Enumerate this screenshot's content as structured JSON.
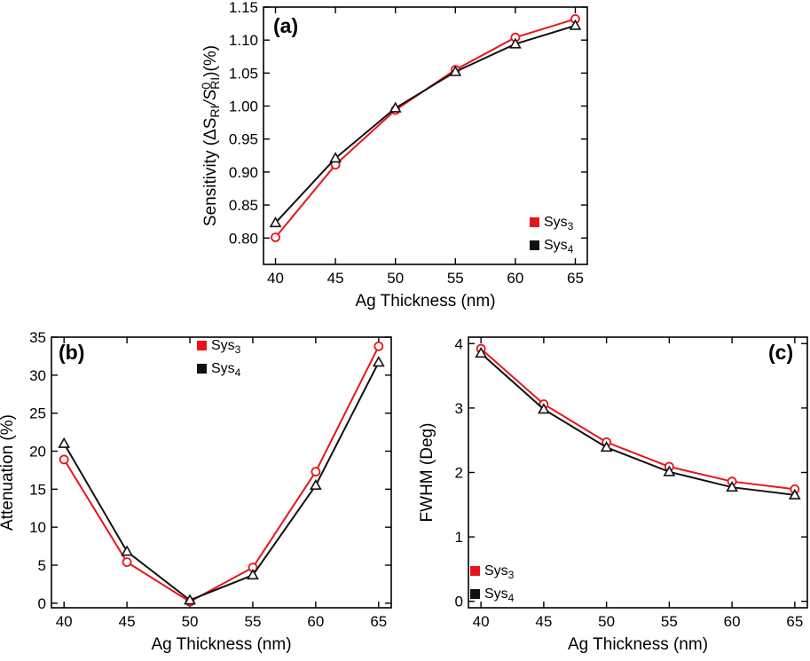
{
  "chart_data": [
    {
      "type": "line",
      "panel_label": "(a)",
      "xlabel": "Ag Thickness (nm)",
      "ylabel_parts": {
        "pre": "Sensitivity (ΔS",
        "sub1": "RI",
        "mid": "/S",
        "sup2": "0",
        "sub2": "RI",
        "post": ")(%)"
      },
      "x": [
        40,
        45,
        50,
        55,
        60,
        65
      ],
      "xlim": [
        39,
        66
      ],
      "ylim": [
        0.76,
        1.15
      ],
      "xticks": [
        "40",
        "45",
        "50",
        "55",
        "60",
        "65"
      ],
      "yticks": [
        "0.80",
        "0.85",
        "0.90",
        "0.95",
        "1.00",
        "1.05",
        "1.10",
        "1.15"
      ],
      "series": [
        {
          "name": "Sys",
          "sub": "3",
          "color": "#e8141b",
          "marker": "circle",
          "values": [
            0.801,
            0.911,
            0.994,
            1.055,
            1.104,
            1.132
          ]
        },
        {
          "name": "Sys",
          "sub": "4",
          "color": "#111111",
          "marker": "triangle",
          "values": [
            0.823,
            0.921,
            0.997,
            1.052,
            1.094,
            1.122
          ]
        }
      ],
      "legend_position": "bottom-right"
    },
    {
      "type": "line",
      "panel_label": "(b)",
      "xlabel": "Ag Thickness (nm)",
      "ylabel": "Attenuation (%)",
      "x": [
        40,
        45,
        50,
        55,
        60,
        65
      ],
      "xlim": [
        39,
        66
      ],
      "ylim": [
        -0.6,
        35
      ],
      "xticks": [
        "40",
        "45",
        "50",
        "55",
        "60",
        "65"
      ],
      "yticks": [
        "0",
        "5",
        "10",
        "15",
        "20",
        "25",
        "30",
        "35"
      ],
      "series": [
        {
          "name": "Sys",
          "sub": "3",
          "color": "#e8141b",
          "marker": "circle",
          "values": [
            18.9,
            5.4,
            0.2,
            4.7,
            17.3,
            33.8
          ]
        },
        {
          "name": "Sys",
          "sub": "4",
          "color": "#111111",
          "marker": "triangle",
          "values": [
            21.0,
            6.8,
            0.4,
            3.7,
            15.5,
            31.7
          ]
        }
      ],
      "legend_position": "top-center"
    },
    {
      "type": "line",
      "panel_label": "(c)",
      "xlabel": "Ag Thickness (nm)",
      "ylabel": "FWHM (Deg)",
      "x": [
        40,
        45,
        50,
        55,
        60,
        65
      ],
      "xlim": [
        39,
        66
      ],
      "ylim": [
        -0.1,
        4.1
      ],
      "xticks": [
        "40",
        "45",
        "50",
        "55",
        "60",
        "65"
      ],
      "yticks": [
        "0",
        "1",
        "2",
        "3",
        "4"
      ],
      "series": [
        {
          "name": "Sys",
          "sub": "3",
          "color": "#e8141b",
          "marker": "circle",
          "values": [
            3.92,
            3.06,
            2.47,
            2.09,
            1.86,
            1.74
          ]
        },
        {
          "name": "Sys",
          "sub": "4",
          "color": "#111111",
          "marker": "triangle",
          "values": [
            3.85,
            2.98,
            2.39,
            2.01,
            1.77,
            1.65
          ]
        }
      ],
      "legend_position": "bottom-left"
    }
  ]
}
